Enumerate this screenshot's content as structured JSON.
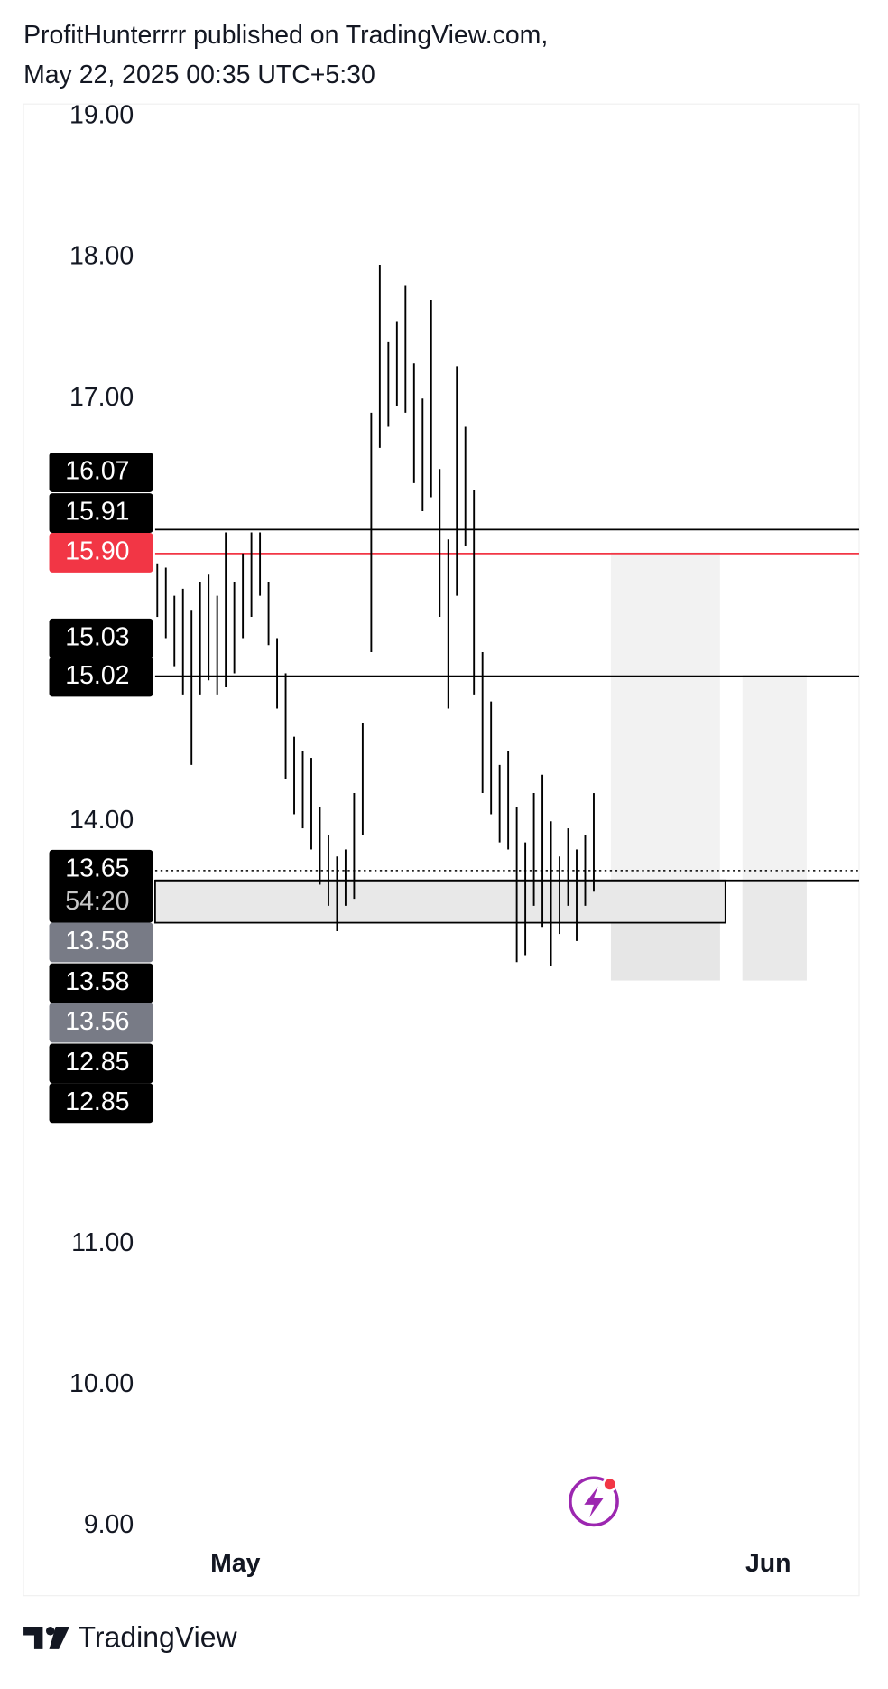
{
  "header": {
    "line1": "ProfitHunterrrr published on TradingView.com,",
    "line2": "May 22, 2025 00:35 UTC+5:30"
  },
  "footer": {
    "brand": "TradingView"
  },
  "chart_data": {
    "type": "hlbar",
    "color": "#000000",
    "xlim": [
      -31.25,
      164
    ],
    "ylim": [
      8.96,
      19.09
    ],
    "xticks": [
      {
        "value": 18.25,
        "label": "May"
      },
      {
        "value": 142.75,
        "label": "Jun"
      }
    ],
    "yticks": [
      {
        "value": 9,
        "label": "9.00"
      },
      {
        "value": 10,
        "label": "10.00"
      },
      {
        "value": 11,
        "label": "11.00"
      },
      {
        "value": 14,
        "label": "14.00"
      },
      {
        "value": 17,
        "label": "17.00"
      },
      {
        "value": 18,
        "label": "18.00"
      },
      {
        "value": 19,
        "label": "19.00"
      }
    ],
    "x": [
      0,
      2,
      4,
      6,
      8,
      10,
      12,
      14,
      16,
      18,
      20,
      22,
      24,
      26,
      28,
      30,
      32,
      34,
      36,
      38,
      40,
      42,
      44,
      46,
      48,
      50,
      52,
      54,
      56,
      58,
      60,
      62,
      64,
      66,
      68,
      70,
      72,
      74,
      76,
      78,
      80,
      82,
      84,
      86,
      88,
      90,
      92,
      94,
      96,
      98,
      100,
      102
    ],
    "high": [
      15.83,
      15.8,
      15.6,
      15.65,
      15.5,
      15.7,
      15.75,
      15.6,
      16.05,
      15.7,
      15.9,
      16.05,
      16.05,
      15.7,
      15.3,
      15.05,
      14.6,
      14.5,
      14.45,
      14.1,
      13.9,
      13.75,
      13.8,
      14.2,
      14.7,
      16.9,
      17.95,
      17.4,
      17.55,
      17.8,
      17.25,
      17.0,
      17.7,
      16.5,
      16.0,
      17.23,
      16.8,
      16.35,
      15.2,
      14.85,
      14.4,
      14.5,
      14.1,
      13.85,
      14.2,
      14.33,
      14.0,
      13.75,
      13.95,
      13.8,
      13.9,
      14.2
    ],
    "low": [
      15.45,
      15.3,
      15.1,
      14.9,
      14.4,
      14.9,
      15.0,
      14.9,
      14.95,
      15.05,
      15.3,
      15.45,
      15.6,
      15.25,
      14.8,
      14.3,
      14.05,
      13.95,
      13.8,
      13.55,
      13.4,
      13.22,
      13.4,
      13.45,
      13.9,
      15.2,
      16.65,
      16.8,
      16.95,
      16.9,
      16.4,
      16.2,
      16.3,
      15.45,
      14.8,
      15.6,
      15.95,
      14.9,
      14.2,
      14.05,
      13.85,
      13.8,
      13.0,
      13.05,
      13.4,
      13.25,
      12.97,
      13.2,
      13.4,
      13.15,
      13.4,
      13.5
    ],
    "hlines": [
      {
        "value": 16.07,
        "color": "#000000",
        "style": "solid"
      },
      {
        "value": 15.9,
        "color": "#f23645",
        "style": "solid"
      },
      {
        "value": 15.03,
        "color": "#000000",
        "style": "solid"
      },
      {
        "value": 13.65,
        "color": "#000000",
        "style": "dotted"
      },
      {
        "value": 13.58,
        "color": "#000000",
        "style": "solid"
      }
    ],
    "zones": [
      {
        "x": [
          106,
          131.5
        ],
        "y": [
          12.87,
          15.91
        ],
        "color": "#f2f2f2"
      },
      {
        "x": [
          106,
          131.5
        ],
        "y": [
          12.87,
          13.58
        ],
        "color": "#e6e6e6"
      },
      {
        "x": [
          136.75,
          151.75
        ],
        "y": [
          12.87,
          15.04
        ],
        "color": "#f2f2f2"
      },
      {
        "x": [
          136.75,
          151.75
        ],
        "y": [
          12.87,
          13.58
        ],
        "color": "#e9e9e9"
      }
    ],
    "box": {
      "x": [
        -0.5,
        132.75
      ],
      "y": [
        13.28,
        13.58
      ],
      "color": "#e8e8e8"
    },
    "price_labels": [
      {
        "label": "16.07",
        "color": "#000000"
      },
      {
        "label": "15.91",
        "color": "#000000"
      },
      {
        "label": "15.90",
        "color": "#f23645"
      },
      {
        "label": "15.03",
        "color": "#000000"
      },
      {
        "label": "15.02",
        "color": "#000000"
      },
      {
        "label": "13.65",
        "color": "#000000",
        "countdown": "54:20"
      },
      {
        "label": "13.58",
        "color": "#787b86"
      },
      {
        "label": "13.58",
        "color": "#000000"
      },
      {
        "label": "13.56",
        "color": "#787b86"
      },
      {
        "label": "12.85",
        "color": "#000000"
      },
      {
        "label": "12.85",
        "color": "#000000"
      }
    ]
  }
}
